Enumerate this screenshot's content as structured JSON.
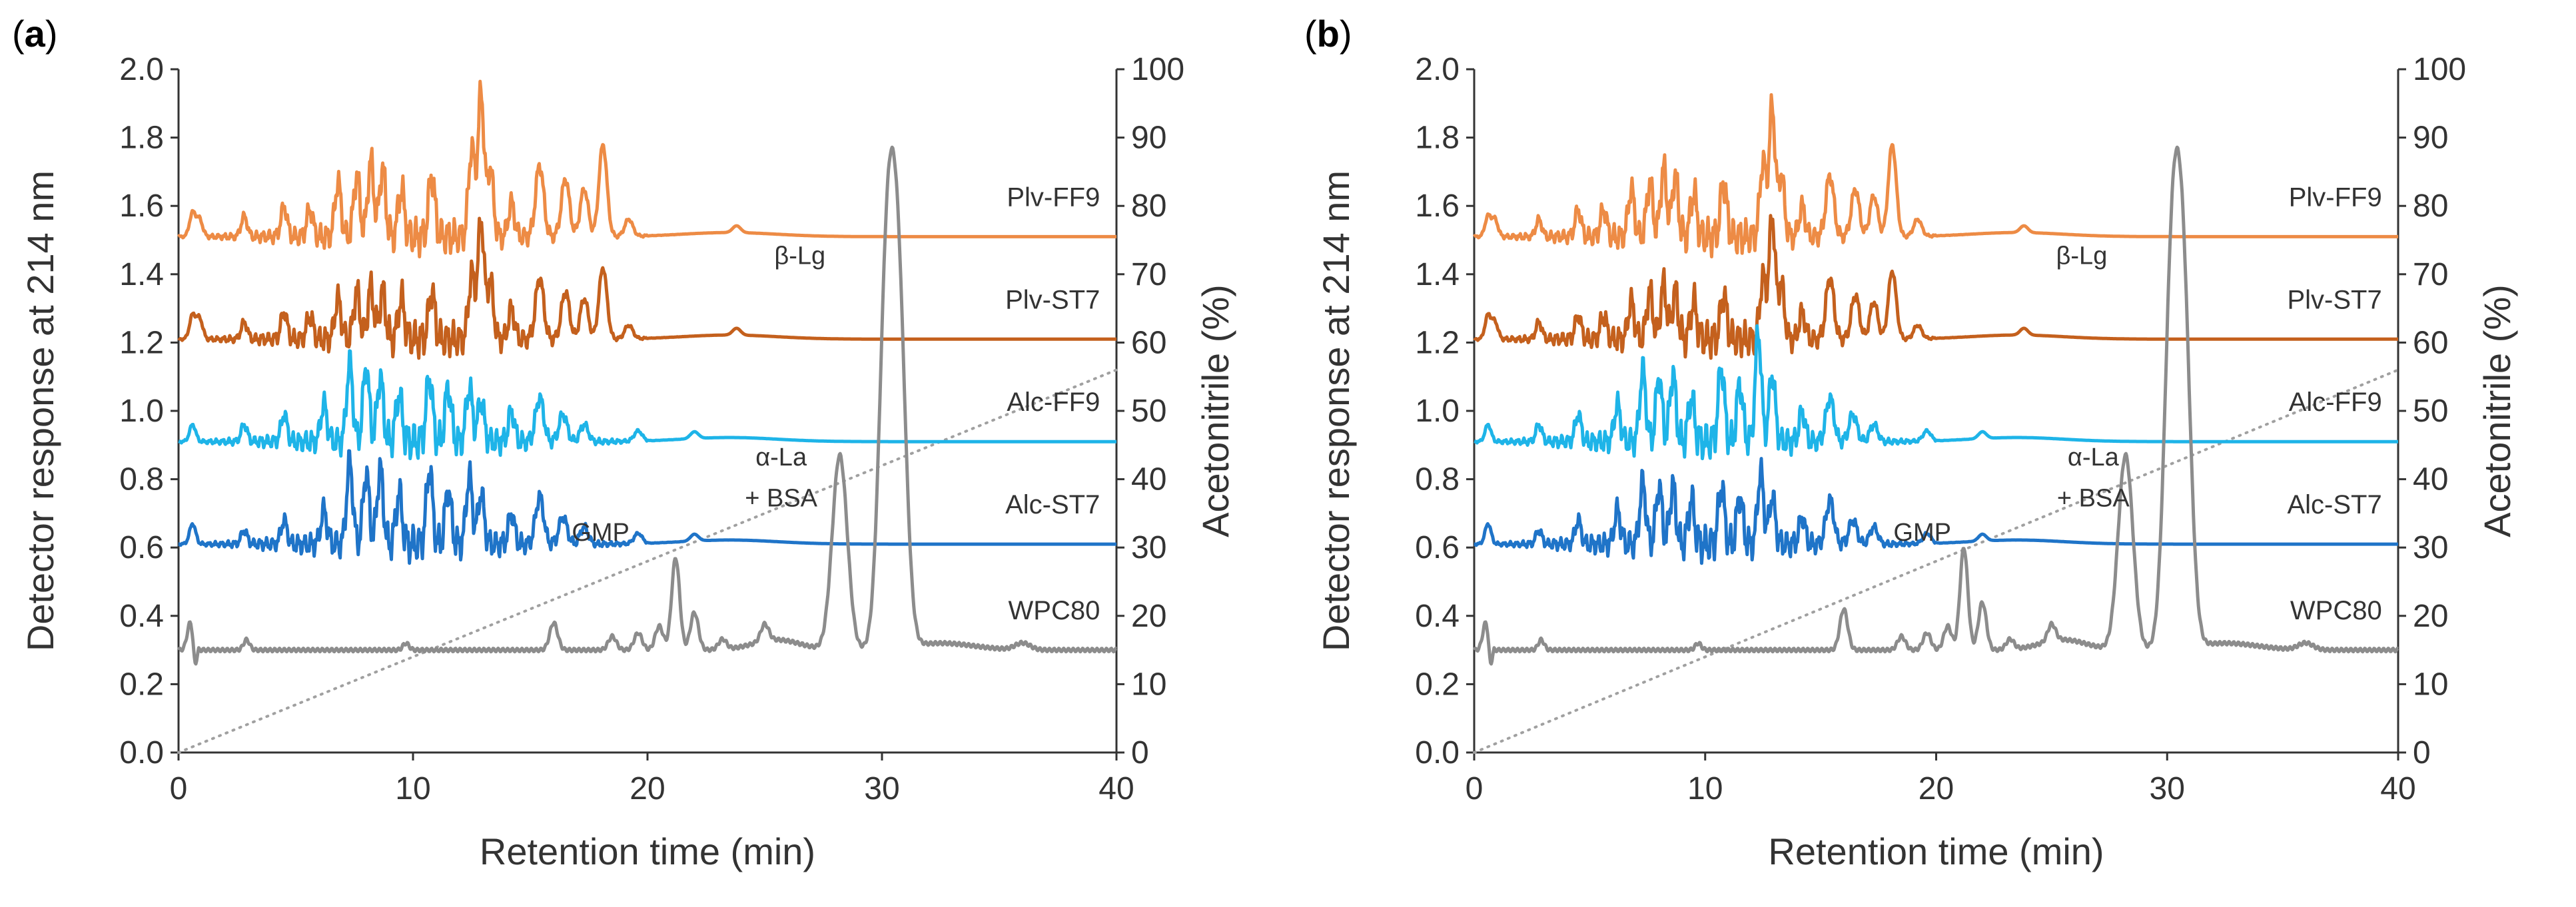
{
  "chart_data": [
    {
      "type": "line",
      "panel_label": "(a)",
      "panel_letter": "a",
      "xlabel": "Retention time (min)",
      "ylabel": "Detector response at 214 nm",
      "y2label": "Acetonitrile (%)",
      "xlim": [
        0,
        40
      ],
      "ylim": [
        0,
        2.0
      ],
      "y2lim": [
        0,
        100
      ],
      "xticks": [
        "0",
        "10",
        "20",
        "30",
        "40"
      ],
      "yticks": [
        "0.0",
        "0.2",
        "0.4",
        "0.6",
        "0.8",
        "1.0",
        "1.2",
        "1.4",
        "1.6",
        "1.8",
        "2.0"
      ],
      "y2ticks": [
        "0",
        "10",
        "20",
        "30",
        "40",
        "50",
        "60",
        "70",
        "80",
        "90",
        "100"
      ],
      "grid": false,
      "series": [
        {
          "name": "Plv-FF9",
          "color": "#ED8B45",
          "baseline": 1.51,
          "peaks": [
            [
              0.6,
              0.07
            ],
            [
              0.9,
              0.05
            ],
            [
              2.8,
              0.06
            ],
            [
              4.5,
              0.09
            ],
            [
              5.6,
              0.08
            ],
            [
              6.8,
              0.16
            ],
            [
              7.6,
              0.18
            ],
            [
              8.2,
              0.22
            ],
            [
              8.7,
              0.2
            ],
            [
              9.5,
              0.14
            ],
            [
              10.8,
              0.18
            ],
            [
              12.5,
              0.26
            ],
            [
              12.9,
              0.42
            ],
            [
              13.3,
              0.2
            ],
            [
              14.2,
              0.1
            ],
            [
              15.4,
              0.21
            ],
            [
              16.5,
              0.17
            ],
            [
              17.3,
              0.14
            ],
            [
              18.1,
              0.27
            ],
            [
              19.2,
              0.05
            ],
            [
              23.8,
              0.02
            ]
          ]
        },
        {
          "name": "Plv-ST7",
          "color": "#C4601D",
          "baseline": 1.21,
          "peaks": [
            [
              0.6,
              0.07
            ],
            [
              0.9,
              0.06
            ],
            [
              2.8,
              0.05
            ],
            [
              4.5,
              0.08
            ],
            [
              5.6,
              0.07
            ],
            [
              6.8,
              0.12
            ],
            [
              7.6,
              0.14
            ],
            [
              8.2,
              0.15
            ],
            [
              8.7,
              0.14
            ],
            [
              9.5,
              0.12
            ],
            [
              10.8,
              0.14
            ],
            [
              12.5,
              0.19
            ],
            [
              12.9,
              0.35
            ],
            [
              13.3,
              0.17
            ],
            [
              14.2,
              0.09
            ],
            [
              15.4,
              0.18
            ],
            [
              16.5,
              0.14
            ],
            [
              17.3,
              0.12
            ],
            [
              18.1,
              0.21
            ],
            [
              19.2,
              0.04
            ],
            [
              23.8,
              0.02
            ]
          ]
        },
        {
          "name": "Alc-FF9",
          "color": "#1EB4E8",
          "baseline": 0.91,
          "peaks": [
            [
              0.6,
              0.05
            ],
            [
              2.8,
              0.05
            ],
            [
              4.5,
              0.08
            ],
            [
              6.2,
              0.11
            ],
            [
              7.3,
              0.23
            ],
            [
              8.0,
              0.22
            ],
            [
              8.6,
              0.19
            ],
            [
              9.4,
              0.14
            ],
            [
              10.7,
              0.19
            ],
            [
              11.5,
              0.16
            ],
            [
              12.4,
              0.16
            ],
            [
              12.9,
              0.12
            ],
            [
              14.2,
              0.09
            ],
            [
              15.4,
              0.13
            ],
            [
              16.4,
              0.08
            ],
            [
              17.3,
              0.05
            ],
            [
              19.6,
              0.03
            ],
            [
              22.0,
              0.02
            ]
          ]
        },
        {
          "name": "Alc-ST7",
          "color": "#1F74C8",
          "baseline": 0.61,
          "peaks": [
            [
              0.6,
              0.06
            ],
            [
              2.8,
              0.04
            ],
            [
              4.5,
              0.07
            ],
            [
              6.2,
              0.1
            ],
            [
              7.3,
              0.24
            ],
            [
              8.0,
              0.21
            ],
            [
              8.6,
              0.22
            ],
            [
              9.4,
              0.15
            ],
            [
              10.7,
              0.22
            ],
            [
              11.5,
              0.16
            ],
            [
              12.4,
              0.2
            ],
            [
              12.9,
              0.15
            ],
            [
              14.2,
              0.09
            ],
            [
              15.4,
              0.14
            ],
            [
              16.4,
              0.08
            ],
            [
              17.3,
              0.05
            ],
            [
              19.6,
              0.03
            ],
            [
              22.0,
              0.02
            ]
          ]
        },
        {
          "name": "WPC80",
          "color": "#8C8C8C",
          "baseline": 0.3,
          "peaks": [
            [
              0.5,
              0.08
            ],
            [
              2.9,
              0.03
            ],
            [
              9.7,
              0.02
            ],
            [
              16.0,
              0.08
            ],
            [
              18.5,
              0.04
            ],
            [
              19.6,
              0.05
            ],
            [
              20.5,
              0.07
            ],
            [
              21.2,
              0.27
            ],
            [
              22.0,
              0.11
            ],
            [
              23.2,
              0.03
            ],
            [
              25.0,
              0.05
            ],
            [
              28.2,
              0.57
            ],
            [
              30.2,
              1.03
            ],
            [
              30.7,
              0.95
            ],
            [
              36.0,
              0.02
            ]
          ]
        }
      ],
      "acetonitrile": {
        "name": "Acetonitrile",
        "x": [
          0,
          40
        ],
        "y": [
          0,
          56
        ],
        "color": "#A0A0A0"
      },
      "annotations": [
        {
          "text": "β-Lg",
          "x": 26.5,
          "y": 1.43
        },
        {
          "text": "α-La",
          "x": 25.7,
          "y": 0.84
        },
        {
          "text": "+ BSA",
          "x": 25.7,
          "y": 0.72
        },
        {
          "text": "GMP",
          "x": 18.0,
          "y": 0.62
        }
      ]
    },
    {
      "type": "line",
      "panel_label": "(b)",
      "panel_letter": "b",
      "xlabel": "Retention time (min)",
      "ylabel": "Detector response at 214 nm",
      "y2label": "Acetonitrile (%)",
      "xlim": [
        0,
        40
      ],
      "ylim": [
        0,
        2.0
      ],
      "y2lim": [
        0,
        100
      ],
      "xticks": [
        "0",
        "10",
        "20",
        "30",
        "40"
      ],
      "yticks": [
        "0.0",
        "0.2",
        "0.4",
        "0.6",
        "0.8",
        "1.0",
        "1.2",
        "1.4",
        "1.6",
        "1.8",
        "2.0"
      ],
      "y2ticks": [
        "0",
        "10",
        "20",
        "30",
        "40",
        "50",
        "60",
        "70",
        "80",
        "90",
        "100"
      ],
      "grid": false,
      "series": [
        {
          "name": "Plv-FF9",
          "color": "#ED8B45",
          "baseline": 1.51,
          "peaks": [
            [
              0.6,
              0.06
            ],
            [
              0.9,
              0.05
            ],
            [
              2.8,
              0.05
            ],
            [
              4.5,
              0.08
            ],
            [
              5.6,
              0.08
            ],
            [
              6.8,
              0.14
            ],
            [
              7.6,
              0.16
            ],
            [
              8.2,
              0.2
            ],
            [
              8.7,
              0.18
            ],
            [
              9.5,
              0.13
            ],
            [
              10.8,
              0.16
            ],
            [
              12.5,
              0.22
            ],
            [
              12.9,
              0.38
            ],
            [
              13.3,
              0.18
            ],
            [
              14.2,
              0.09
            ],
            [
              15.4,
              0.18
            ],
            [
              16.5,
              0.14
            ],
            [
              17.3,
              0.12
            ],
            [
              18.1,
              0.27
            ],
            [
              19.2,
              0.05
            ],
            [
              23.8,
              0.02
            ]
          ]
        },
        {
          "name": "Plv-ST7",
          "color": "#C4601D",
          "baseline": 1.21,
          "peaks": [
            [
              0.6,
              0.07
            ],
            [
              0.9,
              0.05
            ],
            [
              2.8,
              0.05
            ],
            [
              4.5,
              0.07
            ],
            [
              5.6,
              0.07
            ],
            [
              6.8,
              0.11
            ],
            [
              7.6,
              0.14
            ],
            [
              8.2,
              0.16
            ],
            [
              8.7,
              0.14
            ],
            [
              9.5,
              0.11
            ],
            [
              10.8,
              0.13
            ],
            [
              12.5,
              0.18
            ],
            [
              12.9,
              0.36
            ],
            [
              13.3,
              0.16
            ],
            [
              14.2,
              0.08
            ],
            [
              15.4,
              0.18
            ],
            [
              16.5,
              0.13
            ],
            [
              17.3,
              0.11
            ],
            [
              18.1,
              0.2
            ],
            [
              19.2,
              0.04
            ],
            [
              23.8,
              0.02
            ]
          ]
        },
        {
          "name": "Alc-FF9",
          "color": "#1EB4E8",
          "baseline": 0.91,
          "peaks": [
            [
              0.6,
              0.05
            ],
            [
              2.8,
              0.05
            ],
            [
              4.5,
              0.08
            ],
            [
              6.2,
              0.11
            ],
            [
              7.3,
              0.21
            ],
            [
              8.0,
              0.19
            ],
            [
              8.6,
              0.2
            ],
            [
              9.4,
              0.13
            ],
            [
              10.7,
              0.22
            ],
            [
              11.5,
              0.17
            ],
            [
              12.3,
              0.32
            ],
            [
              12.9,
              0.2
            ],
            [
              14.2,
              0.09
            ],
            [
              15.4,
              0.13
            ],
            [
              16.4,
              0.08
            ],
            [
              17.3,
              0.05
            ],
            [
              19.6,
              0.03
            ],
            [
              22.0,
              0.02
            ]
          ]
        },
        {
          "name": "Alc-ST7",
          "color": "#1F74C8",
          "baseline": 0.61,
          "peaks": [
            [
              0.6,
              0.06
            ],
            [
              2.8,
              0.04
            ],
            [
              4.5,
              0.07
            ],
            [
              6.2,
              0.1
            ],
            [
              7.3,
              0.18
            ],
            [
              8.0,
              0.17
            ],
            [
              8.6,
              0.17
            ],
            [
              9.4,
              0.13
            ],
            [
              10.7,
              0.17
            ],
            [
              11.5,
              0.14
            ],
            [
              12.4,
              0.21
            ],
            [
              12.9,
              0.14
            ],
            [
              14.2,
              0.08
            ],
            [
              15.4,
              0.13
            ],
            [
              16.4,
              0.07
            ],
            [
              17.3,
              0.05
            ],
            [
              19.6,
              0.03
            ],
            [
              22.0,
              0.02
            ]
          ]
        },
        {
          "name": "WPC80",
          "color": "#8C8C8C",
          "baseline": 0.3,
          "peaks": [
            [
              0.5,
              0.08
            ],
            [
              2.9,
              0.03
            ],
            [
              9.7,
              0.02
            ],
            [
              16.0,
              0.12
            ],
            [
              18.5,
              0.04
            ],
            [
              19.6,
              0.05
            ],
            [
              20.5,
              0.07
            ],
            [
              21.2,
              0.3
            ],
            [
              22.0,
              0.14
            ],
            [
              23.2,
              0.03
            ],
            [
              25.0,
              0.05
            ],
            [
              28.2,
              0.57
            ],
            [
              30.2,
              1.03
            ],
            [
              30.7,
              0.95
            ],
            [
              36.0,
              0.02
            ]
          ]
        }
      ],
      "acetonitrile": {
        "name": "Acetonitrile",
        "x": [
          0,
          40
        ],
        "y": [
          0,
          56
        ],
        "color": "#A0A0A0"
      },
      "annotations": [
        {
          "text": "β-Lg",
          "x": 26.3,
          "y": 1.43
        },
        {
          "text": "α-La",
          "x": 26.8,
          "y": 0.84
        },
        {
          "text": "+ BSA",
          "x": 26.8,
          "y": 0.72
        },
        {
          "text": "GMP",
          "x": 19.4,
          "y": 0.62
        }
      ]
    }
  ]
}
